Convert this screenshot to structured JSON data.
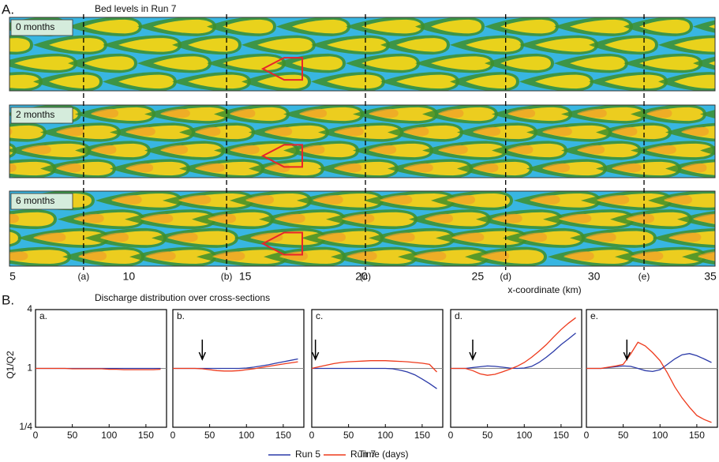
{
  "bed_levels": {
    "label": "A.",
    "title": "Bed levels in Run 7",
    "panels": [
      "0 months",
      "2 months",
      "6 months"
    ],
    "xlabel": "x-coordinate (km)",
    "xlim": [
      5,
      35
    ],
    "xticks": [
      5,
      10,
      15,
      20,
      25,
      30,
      35
    ],
    "sections": [
      {
        "label": "(a)",
        "x": 8.05
      },
      {
        "label": "(b)",
        "x": 14.2
      },
      {
        "label": "(c)",
        "x": 20.17
      },
      {
        "label": "(d)",
        "x": 26.2
      },
      {
        "label": "(e)",
        "x": 32.15
      }
    ]
  },
  "discharge": {
    "label": "B.",
    "title": "Discharge distribution over cross-sections",
    "xlabel": "Time (days)",
    "ylabel": "Q1/Q2"
  },
  "chart_data": [
    {
      "type": "line",
      "title": "a.",
      "x": [
        0,
        10,
        20,
        30,
        40,
        50,
        60,
        70,
        80,
        90,
        100,
        110,
        120,
        130,
        140,
        150,
        160,
        170
      ],
      "xlim": [
        0,
        178
      ],
      "xticks": [
        0,
        50,
        100,
        150
      ],
      "ylim": [
        0.25,
        4
      ],
      "log_y": true,
      "yticks": [
        {
          "value": 0.25,
          "label": "1/4"
        },
        1,
        4
      ],
      "hline": 1,
      "series": [
        {
          "name": "Run 5",
          "color": "#2b3aa8",
          "values": [
            1,
            1,
            1,
            1,
            1,
            1,
            1,
            1,
            1,
            1,
            1,
            1,
            1,
            1,
            1,
            1,
            1,
            1
          ]
        },
        {
          "name": "Run 7",
          "color": "#ee3a1c",
          "values": [
            1,
            1,
            1,
            1,
            1,
            0.99,
            0.99,
            0.99,
            0.99,
            0.99,
            0.98,
            0.98,
            0.97,
            0.97,
            0.97,
            0.97,
            0.97,
            0.98
          ]
        }
      ]
    },
    {
      "type": "line",
      "title": "b.",
      "x": [
        0,
        10,
        20,
        30,
        40,
        50,
        60,
        70,
        80,
        90,
        100,
        110,
        120,
        130,
        140,
        150,
        160,
        170
      ],
      "xlim": [
        0,
        178
      ],
      "xticks": [
        0,
        50,
        100,
        150
      ],
      "ylim": [
        0.25,
        4
      ],
      "log_y": true,
      "hline": 1,
      "arrow": 40,
      "series": [
        {
          "name": "Run 5",
          "color": "#2b3aa8",
          "values": [
            1,
            1,
            1,
            1,
            1,
            1,
            1,
            1,
            1,
            1,
            1.01,
            1.03,
            1.06,
            1.09,
            1.13,
            1.17,
            1.21,
            1.25
          ]
        },
        {
          "name": "Run 7",
          "color": "#ee3a1c",
          "values": [
            1,
            1,
            1,
            1,
            0.99,
            0.97,
            0.95,
            0.94,
            0.94,
            0.95,
            0.97,
            0.99,
            1.02,
            1.05,
            1.08,
            1.11,
            1.14,
            1.17
          ]
        }
      ]
    },
    {
      "type": "line",
      "title": "c.",
      "x": [
        0,
        10,
        20,
        30,
        40,
        50,
        60,
        70,
        80,
        90,
        100,
        110,
        120,
        130,
        140,
        150,
        160,
        170
      ],
      "xlim": [
        0,
        178
      ],
      "xticks": [
        0,
        50,
        100,
        150
      ],
      "ylim": [
        0.25,
        4
      ],
      "log_y": true,
      "hline": 1,
      "arrow": 5,
      "series": [
        {
          "name": "Run 5",
          "color": "#2b3aa8",
          "values": [
            1,
            1,
            1,
            1,
            1,
            1,
            1,
            1,
            1,
            1,
            1,
            0.99,
            0.96,
            0.92,
            0.86,
            0.78,
            0.7,
            0.62
          ]
        },
        {
          "name": "Run 7",
          "color": "#ee3a1c",
          "values": [
            1,
            1.04,
            1.08,
            1.12,
            1.15,
            1.17,
            1.18,
            1.19,
            1.2,
            1.2,
            1.2,
            1.19,
            1.18,
            1.17,
            1.15,
            1.13,
            1.1,
            0.92
          ]
        }
      ]
    },
    {
      "type": "line",
      "title": "d.",
      "x": [
        0,
        10,
        20,
        30,
        40,
        50,
        60,
        70,
        80,
        90,
        100,
        110,
        120,
        130,
        140,
        150,
        160,
        170
      ],
      "xlim": [
        0,
        178
      ],
      "xticks": [
        0,
        50,
        100,
        150
      ],
      "ylim": [
        0.25,
        4
      ],
      "log_y": true,
      "hline": 1,
      "arrow": 30,
      "series": [
        {
          "name": "Run 5",
          "color": "#2b3aa8",
          "values": [
            1,
            1,
            1,
            1.02,
            1.04,
            1.06,
            1.05,
            1.03,
            1.01,
            1,
            1.01,
            1.05,
            1.15,
            1.3,
            1.5,
            1.75,
            2.0,
            2.3
          ]
        },
        {
          "name": "Run 7",
          "color": "#ee3a1c",
          "values": [
            1,
            1,
            1,
            0.95,
            0.88,
            0.85,
            0.87,
            0.92,
            0.98,
            1.05,
            1.15,
            1.3,
            1.5,
            1.75,
            2.1,
            2.5,
            2.9,
            3.3
          ]
        }
      ]
    },
    {
      "type": "line",
      "title": "e.",
      "x": [
        0,
        10,
        20,
        30,
        40,
        50,
        60,
        70,
        80,
        90,
        100,
        110,
        120,
        130,
        140,
        150,
        160,
        170
      ],
      "xlim": [
        0,
        178
      ],
      "xticks": [
        0,
        50,
        100,
        150
      ],
      "ylim": [
        0.25,
        4
      ],
      "log_y": true,
      "hline": 1,
      "arrow": 55,
      "series": [
        {
          "name": "Run 5",
          "color": "#2b3aa8",
          "values": [
            1,
            1,
            1,
            1.02,
            1.04,
            1.06,
            1.05,
            1.0,
            0.95,
            0.93,
            0.97,
            1.1,
            1.25,
            1.38,
            1.42,
            1.35,
            1.25,
            1.15
          ]
        },
        {
          "name": "Run 7",
          "color": "#ee3a1c",
          "values": [
            1,
            1,
            1,
            1.03,
            1.06,
            1.1,
            1.4,
            1.85,
            1.7,
            1.45,
            1.2,
            0.9,
            0.65,
            0.5,
            0.4,
            0.33,
            0.3,
            0.28
          ]
        }
      ]
    }
  ]
}
